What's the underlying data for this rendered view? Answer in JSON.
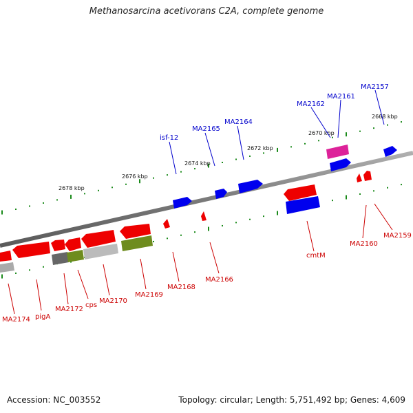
{
  "title": "Methanosarcina acetivorans C2A, complete genome",
  "footer": {
    "accession": "Accession: NC_003552",
    "topology": "Topology: circular; Length: 5,751,492 bp; Genes: 4,609"
  },
  "kbp_ticks": [
    "2678 kbp",
    "2676 kbp",
    "2674 kbp",
    "2672 kbp",
    "2670 kbp",
    "2668 kbp"
  ],
  "genes_top": [
    "MA2157",
    "MA2161",
    "MA2162",
    "MA2164",
    "MA2165",
    "isf-12"
  ],
  "genes_bottom": [
    "MA2159",
    "MA2160",
    "cmtM",
    "MA2166",
    "MA2168",
    "MA2169",
    "MA2170",
    "cps",
    "MA2172",
    "pigA",
    "MA2174"
  ],
  "colors": {
    "backbone": "#8a8a8a",
    "tick": "#1a8a1a",
    "plus_strand_gene": "#0000ee",
    "minus_strand_gene": "#ee0000",
    "ncrna": "#dd2299",
    "olive_gene": "#6e8c1e",
    "gray_gene": "#aaaaaa",
    "dark_gene": "#666666"
  }
}
